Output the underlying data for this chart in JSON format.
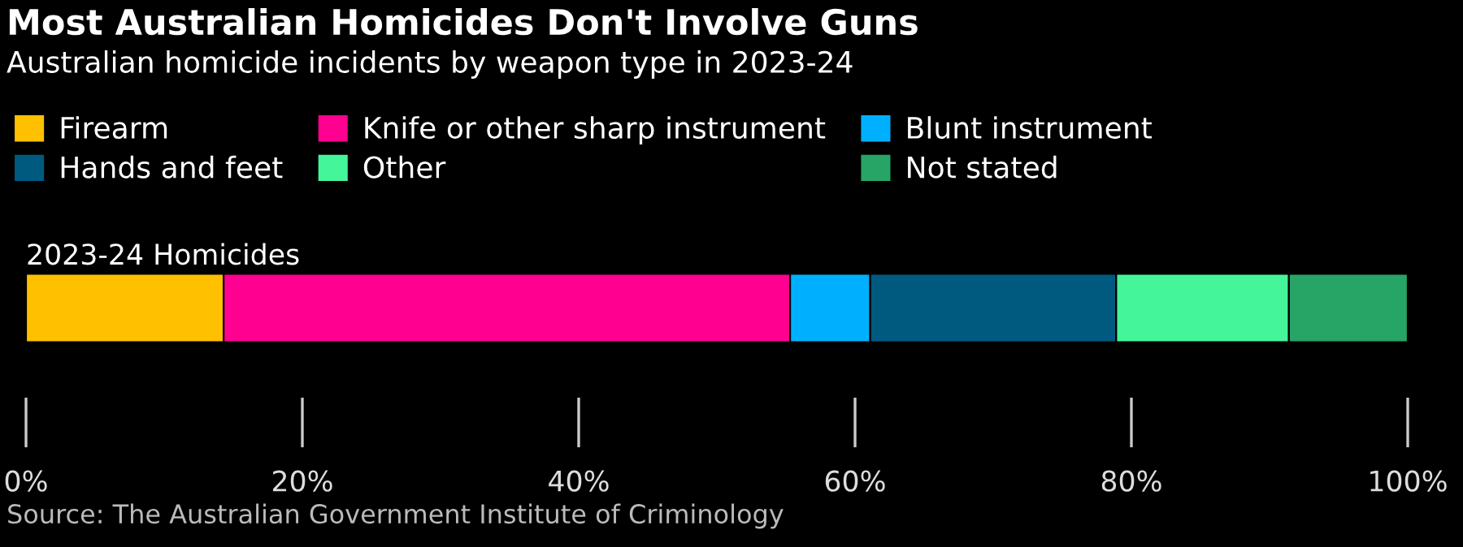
{
  "chart_data": {
    "type": "bar",
    "orientation": "horizontal",
    "stacked": true,
    "title": "Most Australian Homicides Don't Involve Guns",
    "subtitle": "Australian homicide incidents by weapon type in 2023-24",
    "categories": [
      "2023-24 Homicides"
    ],
    "series": [
      {
        "name": "Firearm",
        "color": "#ffc000",
        "values": [
          14.3
        ]
      },
      {
        "name": "Knife or other sharp instrument",
        "color": "#ff0090",
        "values": [
          41.0
        ]
      },
      {
        "name": "Blunt instrument",
        "color": "#00b0ff",
        "values": [
          5.8
        ]
      },
      {
        "name": "Hands and feet",
        "color": "#005a80",
        "values": [
          17.8
        ]
      },
      {
        "name": "Other",
        "color": "#45f59a",
        "values": [
          12.5
        ]
      },
      {
        "name": "Not stated",
        "color": "#27a566",
        "values": [
          8.6
        ]
      }
    ],
    "xlim": [
      0,
      100
    ],
    "xticks": [
      {
        "value": 0,
        "label": "0%"
      },
      {
        "value": 20,
        "label": "20%"
      },
      {
        "value": 40,
        "label": "40%"
      },
      {
        "value": 60,
        "label": "60%"
      },
      {
        "value": 80,
        "label": "80%"
      },
      {
        "value": 100,
        "label": "100%"
      }
    ],
    "legend": "top",
    "annotations": [
      "Source: The Australian Government Institute of Criminology"
    ]
  }
}
